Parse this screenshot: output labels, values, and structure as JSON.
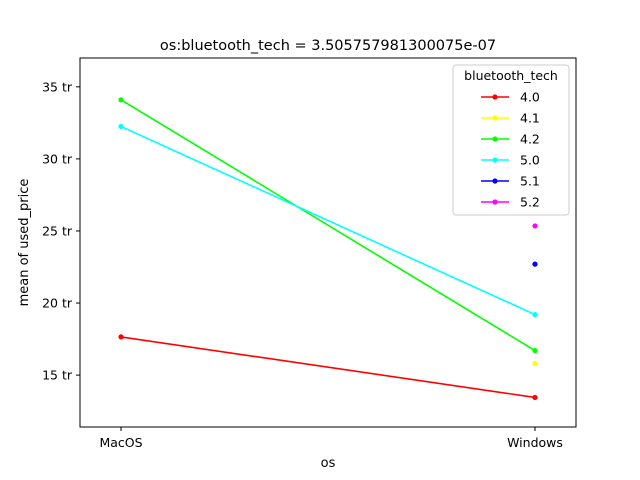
{
  "chart_data": {
    "type": "line",
    "title": "os:bluetooth_tech = 3.505757981300075e-07",
    "xlabel": "os",
    "ylabel": "mean of used_price",
    "categories": [
      "MacOS",
      "Windows"
    ],
    "ylim": [
      11.4,
      37.0
    ],
    "yticks": [
      15,
      20,
      25,
      30,
      35
    ],
    "ytick_labels": [
      "15 tr",
      "20 tr",
      "25 tr",
      "30 tr",
      "35 tr"
    ],
    "grid": false,
    "legend": {
      "title": "bluetooth_tech",
      "placement": "top-right"
    },
    "series": [
      {
        "name": "4.0",
        "color": "#ff0000",
        "values": [
          17.65,
          13.45
        ]
      },
      {
        "name": "4.1",
        "color": "#ffff00",
        "values": [
          null,
          15.8
        ]
      },
      {
        "name": "4.2",
        "color": "#00ff00",
        "values": [
          34.1,
          16.7
        ]
      },
      {
        "name": "5.0",
        "color": "#00ffff",
        "values": [
          32.25,
          19.2
        ]
      },
      {
        "name": "5.1",
        "color": "#0000ff",
        "values": [
          null,
          22.7
        ]
      },
      {
        "name": "5.2",
        "color": "#ff00ff",
        "values": [
          null,
          25.35
        ]
      }
    ]
  }
}
